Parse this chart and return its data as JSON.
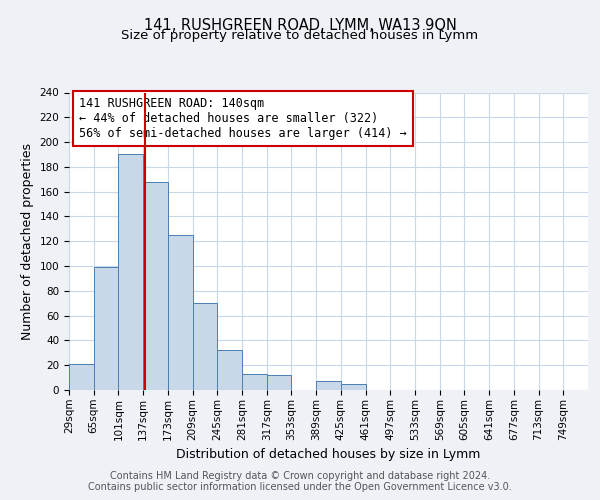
{
  "title": "141, RUSHGREEN ROAD, LYMM, WA13 9QN",
  "subtitle": "Size of property relative to detached houses in Lymm",
  "xlabel": "Distribution of detached houses by size in Lymm",
  "ylabel": "Number of detached properties",
  "bin_labels": [
    "29sqm",
    "65sqm",
    "101sqm",
    "137sqm",
    "173sqm",
    "209sqm",
    "245sqm",
    "281sqm",
    "317sqm",
    "353sqm",
    "389sqm",
    "425sqm",
    "461sqm",
    "497sqm",
    "533sqm",
    "569sqm",
    "605sqm",
    "641sqm",
    "677sqm",
    "713sqm",
    "749sqm"
  ],
  "bin_edges": [
    29,
    65,
    101,
    137,
    173,
    209,
    245,
    281,
    317,
    353,
    389,
    425,
    461,
    497,
    533,
    569,
    605,
    641,
    677,
    713,
    749
  ],
  "bar_heights": [
    21,
    99,
    190,
    168,
    125,
    70,
    32,
    13,
    12,
    0,
    7,
    5,
    0,
    0,
    0,
    0,
    0,
    0,
    0,
    0
  ],
  "property_line_x": 140,
  "bar_color": "#c8d8e8",
  "bar_edge_color": "#4a7fb5",
  "vline_color": "#cc0000",
  "annotation_text": "141 RUSHGREEN ROAD: 140sqm\n← 44% of detached houses are smaller (322)\n56% of semi-detached houses are larger (414) →",
  "annotation_box_color": "white",
  "annotation_box_edge": "#cc0000",
  "ylim": [
    0,
    240
  ],
  "yticks": [
    0,
    20,
    40,
    60,
    80,
    100,
    120,
    140,
    160,
    180,
    200,
    220,
    240
  ],
  "footer_line1": "Contains HM Land Registry data © Crown copyright and database right 2024.",
  "footer_line2": "Contains public sector information licensed under the Open Government Licence v3.0.",
  "bg_color": "#eef2f7",
  "plot_bg_color": "#ffffff",
  "grid_color": "#c8d8e8",
  "title_fontsize": 10.5,
  "subtitle_fontsize": 9.5,
  "label_fontsize": 9,
  "tick_fontsize": 7.5,
  "footer_fontsize": 7,
  "annotation_fontsize": 8.5
}
